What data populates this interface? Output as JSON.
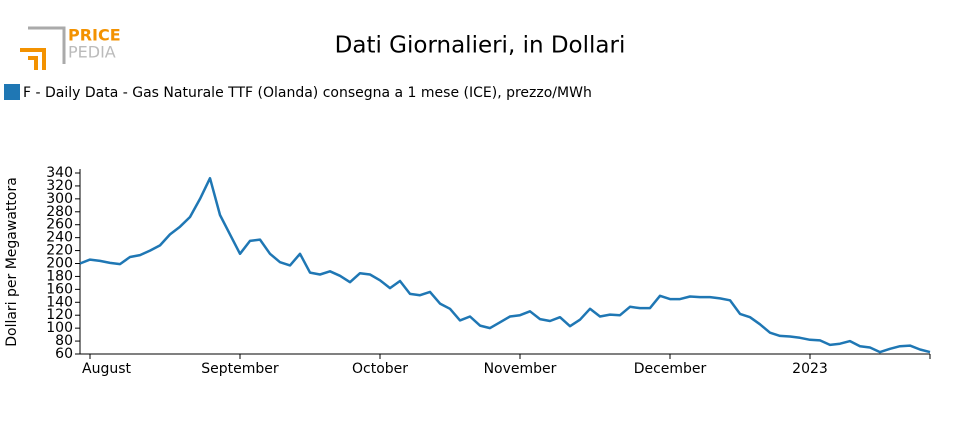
{
  "logo": {
    "top": "PRICE",
    "bottom": "PEDIA"
  },
  "chart_data": {
    "type": "line",
    "title": "Dati Giornalieri, in Dollari",
    "y_label": "Dollari per Megawattora",
    "categories": [
      null,
      "August",
      null,
      null,
      null,
      null,
      null,
      null,
      null,
      null,
      null,
      null,
      null,
      null,
      null,
      null,
      "September",
      null,
      null,
      null,
      null,
      null,
      null,
      null,
      null,
      null,
      null,
      null,
      null,
      null,
      "October",
      null,
      null,
      null,
      null,
      null,
      null,
      null,
      null,
      null,
      null,
      null,
      null,
      null,
      "November",
      null,
      null,
      null,
      null,
      null,
      null,
      null,
      null,
      null,
      null,
      null,
      null,
      null,
      null,
      "December",
      null,
      null,
      null,
      null,
      null,
      null,
      null,
      null,
      null,
      null,
      null,
      null,
      null,
      "2023",
      null,
      null,
      null,
      null,
      null,
      null,
      null,
      null,
      null,
      null,
      null,
      null
    ],
    "series": [
      {
        "name": "F - Daily Data - Gas Naturale TTF (Olanda) consegna a 1 mese (ICE), prezzo/MWh",
        "color": "#1f77b4",
        "values": [
          200,
          206,
          204,
          201,
          199,
          210,
          213,
          220,
          228,
          245,
          257,
          272,
          300,
          332,
          275,
          245,
          215,
          235,
          237,
          215,
          202,
          197,
          215,
          186,
          183,
          188,
          181,
          171,
          185,
          183,
          174,
          162,
          173,
          153,
          151,
          156,
          138,
          130,
          112,
          118,
          104,
          100,
          109,
          118,
          120,
          126,
          114,
          111,
          117,
          103,
          113,
          130,
          118,
          121,
          120,
          133,
          131,
          131,
          150,
          145,
          145,
          149,
          148,
          148,
          146,
          143,
          122,
          117,
          106,
          93,
          88,
          87,
          85,
          82,
          81,
          74,
          76,
          80,
          72,
          70,
          63,
          68,
          72,
          73,
          67,
          63
        ]
      }
    ],
    "ylim": [
      60,
      340
    ],
    "yticks": [
      60,
      80,
      100,
      120,
      140,
      160,
      180,
      200,
      220,
      240,
      260,
      280,
      300,
      320,
      340
    ],
    "legend": "top-left"
  }
}
